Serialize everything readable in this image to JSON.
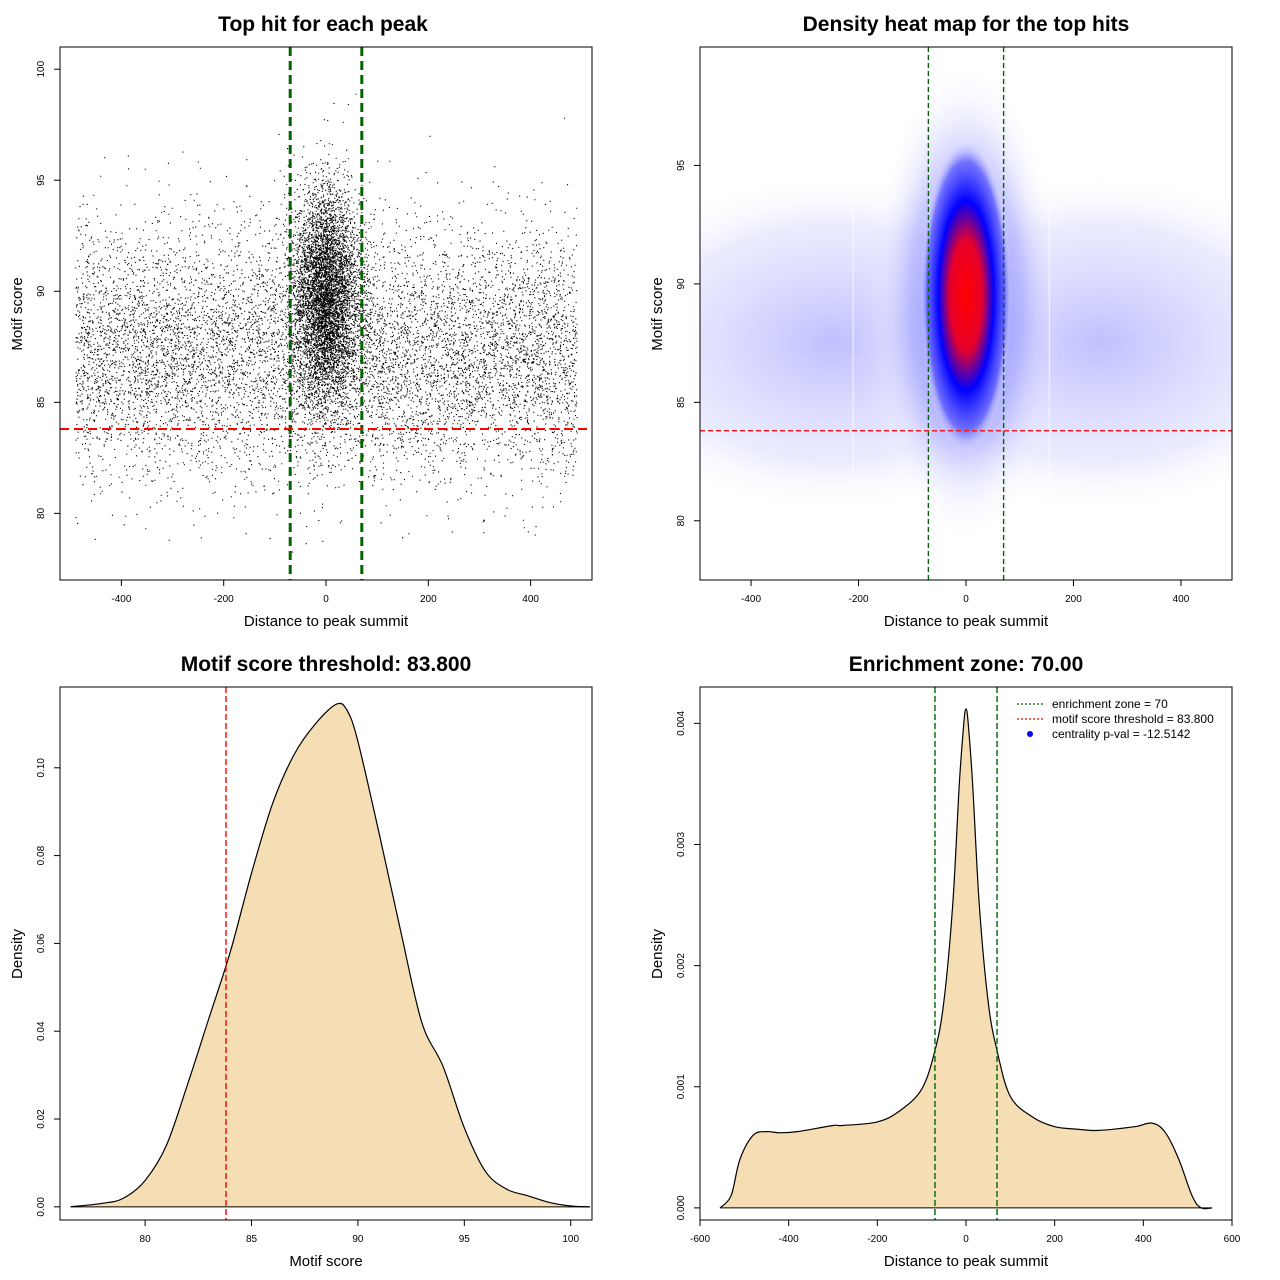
{
  "chart_data": [
    {
      "type": "scatter",
      "title": "Top hit for each peak",
      "xlabel": "Distance to peak summit",
      "ylabel": "Motif score",
      "xlim": [
        -520,
        520
      ],
      "ylim": [
        77,
        101
      ],
      "xticks": [
        "-400",
        "-200",
        "0",
        "200",
        "400"
      ],
      "yticks": [
        "80",
        "85",
        "90",
        "95",
        "100"
      ],
      "vlines": [
        -70,
        70
      ],
      "hline": 83.8,
      "description_of_points": "Approx. 20,000 top motif hits; x uniform in [-490, 490] with concentration near 0; y mostly 80-95"
    },
    {
      "type": "heatmap",
      "title": "Density heat map for the top hits",
      "xlabel": "Distance to peak summit",
      "ylabel": "Motif score",
      "xlim": [
        -495,
        495
      ],
      "ylim": [
        77.5,
        100
      ],
      "xticks": [
        "-400",
        "-200",
        "0",
        "200",
        "400"
      ],
      "yticks": [
        "80",
        "85",
        "90",
        "95"
      ],
      "vlines": [
        -70,
        70
      ],
      "hline": 83.8,
      "peak": {
        "x": 0,
        "y": 89.5
      }
    },
    {
      "type": "area",
      "title": "Motif score threshold: 83.800",
      "xlabel": "Motif score",
      "ylabel": "Density",
      "xlim": [
        76,
        101
      ],
      "ylim": [
        -0.003,
        0.1184
      ],
      "xticks": [
        "80",
        "85",
        "90",
        "95",
        "100"
      ],
      "yticks": [
        "0.00",
        "0.02",
        "0.04",
        "0.06",
        "0.08",
        "0.10"
      ],
      "x": [
        76.5,
        78,
        79,
        80,
        81,
        82,
        83,
        84,
        85,
        86,
        87,
        88,
        89,
        89.5,
        90,
        91,
        92,
        93,
        94,
        95,
        96,
        97,
        98,
        99,
        100,
        100.9
      ],
      "y": [
        0,
        0.0008,
        0.002,
        0.006,
        0.014,
        0.028,
        0.043,
        0.058,
        0.076,
        0.092,
        0.103,
        0.11,
        0.1145,
        0.113,
        0.106,
        0.085,
        0.063,
        0.042,
        0.032,
        0.018,
        0.008,
        0.004,
        0.0025,
        0.001,
        0.0002,
        0
      ],
      "vline": 83.8
    },
    {
      "type": "area",
      "title": "Enrichment zone: 70.00",
      "xlabel": "Distance to peak summit",
      "ylabel": "Density",
      "xlim": [
        -600,
        600
      ],
      "ylim": [
        -0.0001,
        0.0043
      ],
      "xticks": [
        "-600",
        "-400",
        "-200",
        "0",
        "200",
        "400",
        "600"
      ],
      "yticks": [
        "0.000",
        "0.001",
        "0.002",
        "0.003",
        "0.004"
      ],
      "x": [
        -555,
        -530,
        -510,
        -480,
        -450,
        -420,
        -380,
        -300,
        -280,
        -200,
        -150,
        -100,
        -70,
        -50,
        -30,
        -15,
        -5,
        0,
        5,
        15,
        30,
        50,
        70,
        100,
        150,
        200,
        250,
        300,
        380,
        420,
        450,
        480,
        510,
        530,
        555
      ],
      "y": [
        0,
        0.0001,
        0.0004,
        0.0006,
        0.00063,
        0.00062,
        0.00063,
        0.00068,
        0.00068,
        0.00071,
        0.0008,
        0.00098,
        0.0013,
        0.0017,
        0.0025,
        0.0035,
        0.004,
        0.00412,
        0.004,
        0.0035,
        0.0025,
        0.0017,
        0.0013,
        0.00092,
        0.00075,
        0.00067,
        0.00065,
        0.00064,
        0.00067,
        0.0007,
        0.00062,
        0.0004,
        0.0001,
        0,
        0
      ],
      "vlines": [
        -70,
        70
      ],
      "legend": {
        "position": "top-right",
        "entries": [
          {
            "label": "enrichment zone = 70",
            "style": "dotted",
            "color": "#006400"
          },
          {
            "label": "motif score threshold = 83.800",
            "style": "dotted",
            "color": "#ff0000"
          },
          {
            "label": "centrality p-val = -12.5142",
            "style": "point",
            "color": "#0000ff"
          }
        ]
      }
    }
  ],
  "colors": {
    "fill": "#f5deb3",
    "threshold_line": "#ff0000",
    "zone_line": "#006400",
    "heat_low": "#ffffff",
    "heat_mid": "#0000ff",
    "heat_high": "#ff0000"
  }
}
